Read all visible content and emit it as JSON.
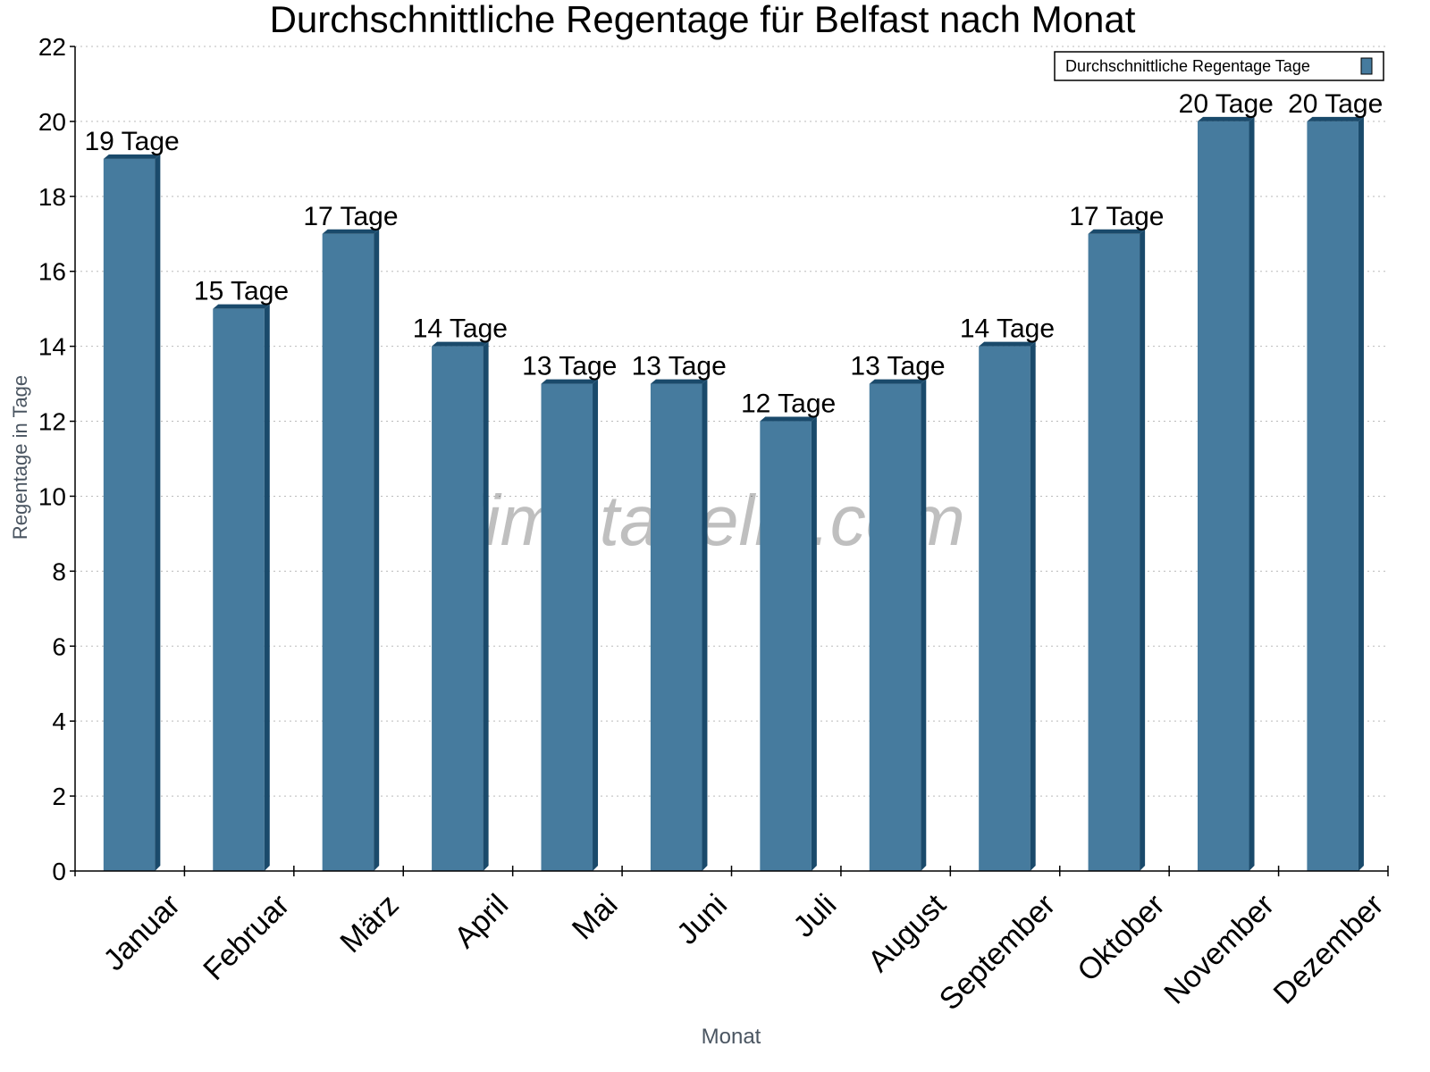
{
  "chart_data": {
    "type": "bar",
    "title": "Durchschnittliche Regentage für Belfast nach Monat",
    "xlabel": "Monat",
    "ylabel": "Regentage in Tage",
    "ylim": [
      0,
      22
    ],
    "yticks": [
      0,
      2,
      4,
      6,
      8,
      10,
      12,
      14,
      16,
      18,
      20,
      22
    ],
    "grid": true,
    "legend_position": "top-right",
    "categories": [
      "Januar",
      "Februar",
      "März",
      "April",
      "Mai",
      "Juni",
      "Juli",
      "August",
      "September",
      "Oktober",
      "November",
      "Dezember"
    ],
    "series": [
      {
        "name": "Durchschnittliche Regentage Tage",
        "values": [
          19,
          15,
          17,
          14,
          13,
          13,
          12,
          13,
          14,
          17,
          20,
          20
        ],
        "color": "#467b9e",
        "shade_color": "#1a4a6b"
      }
    ],
    "data_labels": [
      "19 Tage",
      "15 Tage",
      "17 Tage",
      "14 Tage",
      "13 Tage",
      "13 Tage",
      "12 Tage",
      "13 Tage",
      "14 Tage",
      "17 Tage",
      "20 Tage",
      "20 Tage"
    ],
    "watermark": "klimatabelle.com"
  }
}
